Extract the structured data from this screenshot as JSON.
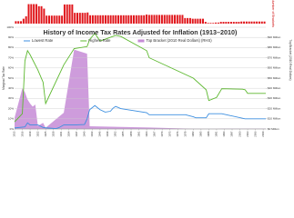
{
  "chart_data": [
    {
      "type": "bar",
      "y_label": "Number of Brackets",
      "color": "#e0161b",
      "ylim": [
        0,
        60
      ],
      "x": [
        1913,
        1914,
        1915,
        1916,
        1917,
        1918,
        1919,
        1920,
        1921,
        1922,
        1923,
        1924,
        1925,
        1926,
        1927,
        1928,
        1929,
        1930,
        1931,
        1932,
        1933,
        1934,
        1935,
        1936,
        1937,
        1938,
        1939,
        1940,
        1941,
        1942,
        1943,
        1944,
        1945,
        1946,
        1947,
        1948,
        1949,
        1950,
        1951,
        1952,
        1953,
        1954,
        1955,
        1956,
        1957,
        1958,
        1959,
        1960,
        1961,
        1962,
        1963,
        1964,
        1965,
        1966,
        1967,
        1968,
        1969,
        1970,
        1971,
        1972,
        1973,
        1974,
        1975,
        1976,
        1977,
        1978,
        1979,
        1980,
        1981,
        1982,
        1983,
        1984,
        1985,
        1986,
        1987,
        1988,
        1989,
        1990,
        1991,
        1992,
        1993,
        1994,
        1995,
        1996,
        1997,
        1998,
        1999,
        2000,
        2001,
        2002,
        2003,
        2004,
        2005,
        2006,
        2007,
        2008,
        2009,
        2010
      ],
      "values": [
        7,
        7,
        7,
        14,
        21,
        56,
        56,
        56,
        56,
        50,
        50,
        43,
        23,
        23,
        23,
        23,
        23,
        23,
        23,
        55,
        55,
        55,
        55,
        31,
        31,
        31,
        31,
        31,
        32,
        24,
        24,
        24,
        24,
        24,
        24,
        24,
        24,
        24,
        24,
        24,
        24,
        24,
        24,
        24,
        24,
        24,
        24,
        24,
        24,
        24,
        24,
        26,
        25,
        25,
        25,
        25,
        25,
        25,
        25,
        25,
        25,
        25,
        25,
        25,
        25,
        25,
        16,
        16,
        16,
        14,
        14,
        14,
        14,
        14,
        5,
        2,
        2,
        2,
        3,
        3,
        5,
        5,
        5,
        5,
        5,
        5,
        5,
        5,
        6,
        6,
        6,
        6,
        6,
        6,
        6,
        6,
        6,
        6
      ]
    },
    {
      "type": "line",
      "title": "History of Income Tax Rates Adjusted for Inflation (1913–2010)",
      "y_label": "Marginal Tax Rate",
      "y2_label": "Top Bracket (2010 Real Dollars)",
      "xlim": [
        1913,
        2010
      ],
      "xticks": [
        1913,
        1916,
        1919,
        1922,
        1925,
        1928,
        1931,
        1934,
        1937,
        1940,
        1943,
        1946,
        1949,
        1952,
        1955,
        1958,
        1961,
        1964,
        1967,
        1970,
        1973,
        1976,
        1979,
        1982,
        1985,
        1988,
        1991,
        1994,
        1997,
        2000,
        2003,
        2006,
        2009
      ],
      "ylim": [
        0,
        100
      ],
      "yticks": [
        {
          "value": 0,
          "label": "0%"
        },
        {
          "value": 10,
          "label": "10%"
        },
        {
          "value": 20,
          "label": "20%"
        },
        {
          "value": 30,
          "label": "30%"
        },
        {
          "value": 40,
          "label": "40%"
        },
        {
          "value": 50,
          "label": "50%"
        },
        {
          "value": 60,
          "label": "60%"
        },
        {
          "value": 70,
          "label": "70%"
        },
        {
          "value": 80,
          "label": "80%"
        },
        {
          "value": 90,
          "label": "90%"
        },
        {
          "value": 100,
          "label": "100%"
        }
      ],
      "y2lim": [
        0,
        100
      ],
      "y2ticks": [
        {
          "value": 0,
          "label": "$0 Million"
        },
        {
          "value": 10,
          "label": "$10 Million"
        },
        {
          "value": 20,
          "label": "$20 Million"
        },
        {
          "value": 30,
          "label": "$30 Million"
        },
        {
          "value": 40,
          "label": "$40 Million"
        },
        {
          "value": 50,
          "label": "$50 Million"
        },
        {
          "value": 60,
          "label": "$60 Million"
        },
        {
          "value": 70,
          "label": "$70 Million"
        },
        {
          "value": 80,
          "label": "$80 Million"
        },
        {
          "value": 90,
          "label": "$90 Million"
        }
      ],
      "grid": true,
      "series": [
        {
          "name": "Lowest Rate",
          "color": "#3d8fe0",
          "x": [
            1913,
            1917,
            1918,
            1919,
            1922,
            1924,
            1925,
            1929,
            1930,
            1932,
            1936,
            1940,
            1941,
            1942,
            1944,
            1946,
            1948,
            1950,
            1951,
            1952,
            1954,
            1964,
            1965,
            1979,
            1982,
            1983,
            1987,
            1988,
            1993,
            2002,
            2010
          ],
          "values": [
            1,
            2,
            6,
            4,
            4,
            1.5,
            1.125,
            0.375,
            1.125,
            4,
            4,
            4.4,
            10,
            19,
            23,
            19,
            16.6,
            17.4,
            20.4,
            22.2,
            20,
            16,
            14,
            14,
            12,
            11,
            11,
            15,
            15,
            10,
            10
          ]
        },
        {
          "name": "Highest Rate",
          "color": "#5cb82e",
          "x": [
            1913,
            1916,
            1917,
            1918,
            1919,
            1922,
            1924,
            1925,
            1932,
            1936,
            1941,
            1942,
            1944,
            1946,
            1951,
            1952,
            1954,
            1964,
            1965,
            1982,
            1987,
            1988,
            1991,
            1993,
            2001,
            2002,
            2003,
            2010
          ],
          "values": [
            7,
            15,
            67,
            77,
            73,
            58,
            46,
            25,
            63,
            79,
            81,
            88,
            94,
            86.45,
            91,
            92,
            91,
            77,
            70,
            50,
            38.5,
            28,
            31,
            39.6,
            39.1,
            38.6,
            35,
            35
          ]
        },
        {
          "name": "Top Bracket (2010 Real Dollars) (RHS)",
          "color": "#c58bd6",
          "axis": "y2",
          "area": true,
          "x": [
            1913,
            1916,
            1917,
            1918,
            1919,
            1920,
            1921,
            1922,
            1924,
            1925,
            1932,
            1936,
            1941,
            1942,
            1965,
            1982,
            1988,
            1991,
            1993,
            2010
          ],
          "values": [
            11,
            40,
            36,
            29,
            25,
            22,
            24,
            3,
            6,
            1.2,
            16,
            78,
            74,
            2.7,
            1.4,
            0.2,
            0.06,
            0.13,
            0.38,
            0.37
          ]
        }
      ]
    }
  ]
}
